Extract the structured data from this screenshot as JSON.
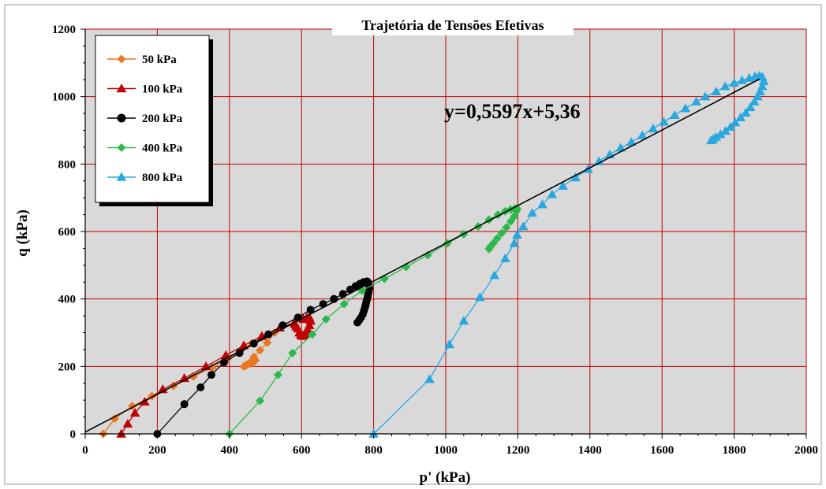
{
  "chart_data": {
    "type": "line",
    "title": "Trajetória de Tensões Efetivas",
    "xlabel": "p' (kPa)",
    "ylabel": "q (kPa)",
    "xlim": [
      0,
      2000
    ],
    "ylim": [
      0,
      1200
    ],
    "xticks": [
      "0",
      "200",
      "400",
      "600",
      "800",
      "1000",
      "1200",
      "1400",
      "1600",
      "1800",
      "2000"
    ],
    "yticks": [
      "0",
      "200",
      "400",
      "600",
      "800",
      "1000",
      "1200"
    ],
    "grid": true,
    "grid_color": "#c00000",
    "plot_background": "#d9d9d9",
    "legend_position": "top-left",
    "fit_line": {
      "equation": "y=0,5597x+5,36",
      "slope": 0.5597,
      "intercept": 5.36,
      "x_range": [
        0,
        1870
      ],
      "color": "#000000"
    },
    "series": [
      {
        "name": "50 kPa",
        "color": "#e87722",
        "marker": "diamond",
        "points": [
          [
            50,
            0
          ],
          [
            82,
            45
          ],
          [
            130,
            82
          ],
          [
            185,
            112
          ],
          [
            245,
            142
          ],
          [
            300,
            170
          ],
          [
            352,
            196
          ],
          [
            395,
            222
          ],
          [
            430,
            245
          ],
          [
            462,
            268
          ],
          [
            490,
            285
          ],
          [
            510,
            295
          ],
          [
            525,
            300
          ],
          [
            505,
            270
          ],
          [
            485,
            248
          ],
          [
            468,
            228
          ],
          [
            455,
            210
          ],
          [
            445,
            203
          ],
          [
            440,
            200
          ],
          [
            448,
            204
          ],
          [
            458,
            208
          ],
          [
            465,
            212
          ],
          [
            470,
            216
          ],
          [
            472,
            218
          ],
          [
            470,
            220
          ],
          [
            465,
            218
          ]
        ]
      },
      {
        "name": "100 kPa",
        "color": "#c00000",
        "marker": "triangle",
        "points": [
          [
            100,
            0
          ],
          [
            118,
            30
          ],
          [
            138,
            62
          ],
          [
            165,
            95
          ],
          [
            215,
            132
          ],
          [
            275,
            165
          ],
          [
            335,
            200
          ],
          [
            390,
            233
          ],
          [
            440,
            262
          ],
          [
            490,
            290
          ],
          [
            540,
            315
          ],
          [
            580,
            330
          ],
          [
            605,
            340
          ],
          [
            615,
            345
          ],
          [
            622,
            345
          ],
          [
            625,
            335
          ],
          [
            622,
            322
          ],
          [
            617,
            310
          ],
          [
            613,
            302
          ],
          [
            609,
            296
          ],
          [
            605,
            292
          ],
          [
            602,
            290
          ],
          [
            598,
            294
          ],
          [
            594,
            300
          ],
          [
            590,
            312
          ],
          [
            585,
            318
          ],
          [
            582,
            325
          ]
        ]
      },
      {
        "name": "200 kPa",
        "color": "#000000",
        "marker": "circle",
        "points": [
          [
            200,
            0
          ],
          [
            275,
            88
          ],
          [
            320,
            138
          ],
          [
            350,
            175
          ],
          [
            385,
            212
          ],
          [
            428,
            240
          ],
          [
            468,
            268
          ],
          [
            508,
            295
          ],
          [
            548,
            322
          ],
          [
            590,
            345
          ],
          [
            625,
            368
          ],
          [
            660,
            385
          ],
          [
            690,
            400
          ],
          [
            715,
            415
          ],
          [
            735,
            428
          ],
          [
            750,
            438
          ],
          [
            762,
            445
          ],
          [
            772,
            450
          ],
          [
            782,
            452
          ],
          [
            785,
            448
          ],
          [
            787,
            440
          ],
          [
            788,
            430
          ],
          [
            786,
            420
          ],
          [
            784,
            410
          ],
          [
            782,
            400
          ],
          [
            780,
            392
          ],
          [
            778,
            383
          ],
          [
            776,
            375
          ],
          [
            773,
            365
          ],
          [
            770,
            355
          ],
          [
            765,
            345
          ],
          [
            760,
            337
          ],
          [
            755,
            330
          ]
        ]
      },
      {
        "name": "400 kPa",
        "color": "#2db84d",
        "marker": "diamond",
        "points": [
          [
            400,
            0
          ],
          [
            485,
            98
          ],
          [
            535,
            175
          ],
          [
            575,
            240
          ],
          [
            630,
            295
          ],
          [
            668,
            340
          ],
          [
            718,
            385
          ],
          [
            768,
            425
          ],
          [
            830,
            460
          ],
          [
            890,
            495
          ],
          [
            950,
            530
          ],
          [
            1005,
            565
          ],
          [
            1050,
            592
          ],
          [
            1090,
            615
          ],
          [
            1120,
            635
          ],
          [
            1145,
            650
          ],
          [
            1165,
            660
          ],
          [
            1180,
            665
          ],
          [
            1192,
            668
          ],
          [
            1198,
            668
          ],
          [
            1196,
            660
          ],
          [
            1190,
            645
          ],
          [
            1180,
            630
          ],
          [
            1168,
            612
          ],
          [
            1155,
            595
          ],
          [
            1143,
            580
          ],
          [
            1132,
            565
          ],
          [
            1124,
            555
          ],
          [
            1120,
            548
          ]
        ]
      },
      {
        "name": "800 kPa",
        "color": "#29a8e0",
        "marker": "triangle",
        "points": [
          [
            800,
            0
          ],
          [
            955,
            162
          ],
          [
            1010,
            265
          ],
          [
            1050,
            335
          ],
          [
            1095,
            405
          ],
          [
            1135,
            470
          ],
          [
            1165,
            520
          ],
          [
            1190,
            565
          ],
          [
            1198,
            590
          ],
          [
            1215,
            615
          ],
          [
            1240,
            655
          ],
          [
            1268,
            680
          ],
          [
            1295,
            710
          ],
          [
            1325,
            735
          ],
          [
            1360,
            760
          ],
          [
            1395,
            785
          ],
          [
            1425,
            808
          ],
          [
            1455,
            828
          ],
          [
            1485,
            848
          ],
          [
            1515,
            865
          ],
          [
            1545,
            885
          ],
          [
            1575,
            905
          ],
          [
            1605,
            925
          ],
          [
            1635,
            945
          ],
          [
            1665,
            965
          ],
          [
            1695,
            985
          ],
          [
            1720,
            1000
          ],
          [
            1750,
            1015
          ],
          [
            1775,
            1030
          ],
          [
            1800,
            1040
          ],
          [
            1822,
            1048
          ],
          [
            1842,
            1055
          ],
          [
            1858,
            1060
          ],
          [
            1870,
            1062
          ],
          [
            1878,
            1058
          ],
          [
            1882,
            1045
          ],
          [
            1878,
            1030
          ],
          [
            1872,
            1015
          ],
          [
            1865,
            1000
          ],
          [
            1856,
            985
          ],
          [
            1845,
            968
          ],
          [
            1832,
            952
          ],
          [
            1818,
            938
          ],
          [
            1803,
            923
          ],
          [
            1790,
            910
          ],
          [
            1776,
            898
          ],
          [
            1762,
            888
          ],
          [
            1750,
            880
          ],
          [
            1742,
            874
          ],
          [
            1736,
            870
          ]
        ]
      }
    ]
  }
}
